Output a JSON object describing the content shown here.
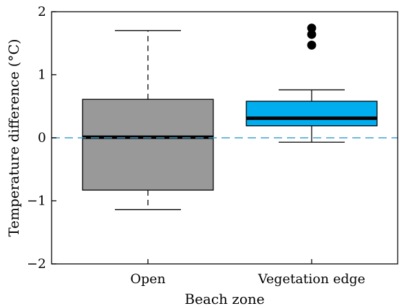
{
  "chart_data": {
    "type": "boxplot",
    "xlabel": "Beach zone",
    "ylabel": "Temperature difference (°C)",
    "ylim": [
      -2,
      2
    ],
    "yticks": [
      -2,
      -1,
      0,
      1,
      2
    ],
    "ytick_labels": [
      "−2",
      "−1",
      "0",
      "1",
      "2"
    ],
    "reference_line": {
      "y": 0,
      "style": "dashed",
      "color": "#3a9fd0"
    },
    "categories": [
      "Open",
      "Vegetation edge"
    ],
    "boxes": [
      {
        "category": "Open",
        "whisker_low": -1.14,
        "q1": -0.83,
        "median": 0.01,
        "q3": 0.61,
        "whisker_high": 1.7,
        "outliers": [],
        "fill": "#999999",
        "whisker_style": "dashed"
      },
      {
        "category": "Vegetation edge",
        "whisker_low": -0.07,
        "q1": 0.19,
        "median": 0.31,
        "q3": 0.58,
        "whisker_high": 0.76,
        "outliers": [
          1.47,
          1.64,
          1.74
        ],
        "fill": "#00aeef",
        "whisker_style": "solid"
      }
    ]
  }
}
